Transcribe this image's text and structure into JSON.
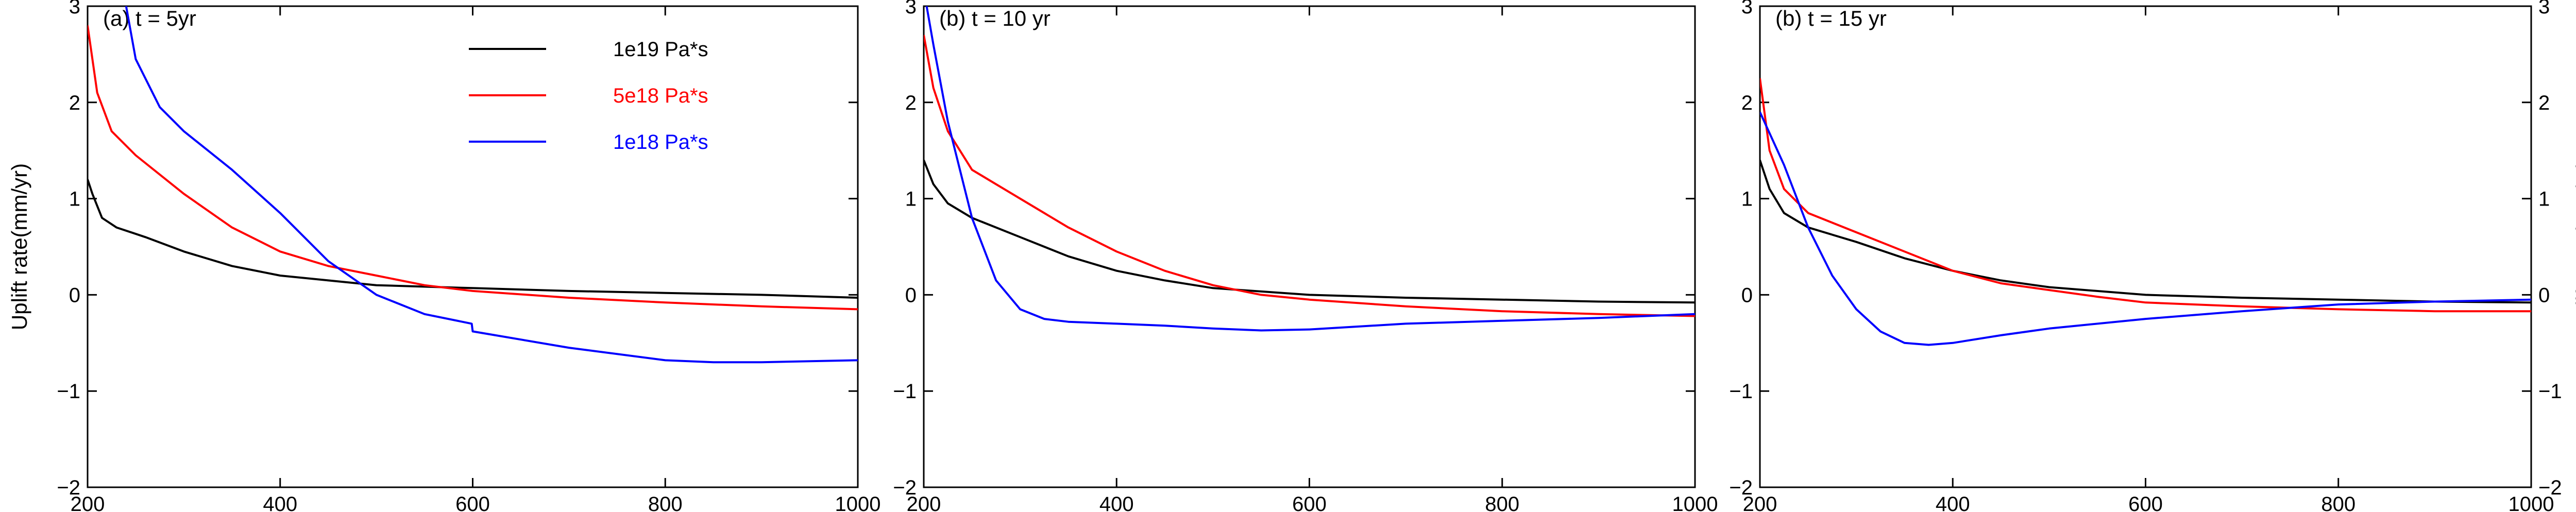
{
  "chart_data": [
    {
      "type": "line",
      "panel_label": "(a) t = 5yr",
      "ylabel": "Uplift rate(mm/yr)",
      "xlim": [
        200,
        1000
      ],
      "ylim": [
        -2,
        3
      ],
      "xticks": [
        200,
        400,
        600,
        800,
        1000
      ],
      "yticks": [
        -2,
        -1,
        0,
        1,
        2,
        3
      ],
      "grid": false,
      "legend": "top-center",
      "series": [
        {
          "name": "1e19 Pa*s",
          "color": "#000000",
          "x": [
            200,
            205,
            215,
            230,
            260,
            300,
            350,
            400,
            450,
            500,
            600,
            700,
            800,
            900,
            1000
          ],
          "y": [
            1.2,
            1.05,
            0.8,
            0.7,
            0.6,
            0.45,
            0.3,
            0.2,
            0.15,
            0.1,
            0.07,
            0.04,
            0.02,
            0.0,
            -0.03
          ]
        },
        {
          "name": "5e18 Pa*s",
          "color": "#ff0000",
          "x": [
            200,
            210,
            225,
            250,
            300,
            350,
            400,
            450,
            500,
            550,
            600,
            700,
            800,
            900,
            1000
          ],
          "y": [
            2.8,
            2.1,
            1.7,
            1.45,
            1.05,
            0.7,
            0.45,
            0.3,
            0.2,
            0.1,
            0.04,
            -0.03,
            -0.08,
            -0.12,
            -0.15
          ]
        },
        {
          "name": "1e18 Pa*s",
          "color": "#0000ff",
          "x": [
            240,
            250,
            275,
            300,
            350,
            400,
            450,
            500,
            550,
            599,
            600,
            700,
            800,
            850,
            900,
            1000
          ],
          "y": [
            3.0,
            2.45,
            1.95,
            1.7,
            1.3,
            0.85,
            0.35,
            0.0,
            -0.2,
            -0.3,
            -0.38,
            -0.55,
            -0.68,
            -0.7,
            -0.7,
            -0.68
          ]
        }
      ]
    },
    {
      "type": "line",
      "panel_label": "(b) t = 10 yr",
      "ylabel": "",
      "xlim": [
        200,
        1000
      ],
      "ylim": [
        -2,
        3
      ],
      "xticks": [
        200,
        400,
        600,
        800,
        1000
      ],
      "yticks": [
        -2,
        -1,
        0,
        1,
        2,
        3
      ],
      "grid": false,
      "legend": "none",
      "series": [
        {
          "name": "1e19 Pa*s",
          "color": "#000000",
          "x": [
            200,
            210,
            225,
            250,
            300,
            350,
            400,
            450,
            500,
            600,
            700,
            800,
            900,
            1000
          ],
          "y": [
            1.4,
            1.15,
            0.95,
            0.8,
            0.6,
            0.4,
            0.25,
            0.15,
            0.07,
            0.0,
            -0.03,
            -0.05,
            -0.07,
            -0.08
          ]
        },
        {
          "name": "5e18 Pa*s",
          "color": "#ff0000",
          "x": [
            200,
            210,
            225,
            250,
            275,
            300,
            350,
            400,
            450,
            500,
            550,
            600,
            700,
            800,
            900,
            1000
          ],
          "y": [
            2.7,
            2.15,
            1.7,
            1.3,
            1.15,
            1.0,
            0.7,
            0.45,
            0.25,
            0.1,
            0.0,
            -0.05,
            -0.12,
            -0.17,
            -0.2,
            -0.22
          ]
        },
        {
          "name": "1e18 Pa*s",
          "color": "#0000ff",
          "x": [
            203,
            210,
            225,
            250,
            275,
            300,
            325,
            350,
            400,
            450,
            500,
            550,
            600,
            700,
            800,
            900,
            1000
          ],
          "y": [
            3.0,
            2.6,
            1.8,
            0.8,
            0.15,
            -0.15,
            -0.25,
            -0.28,
            -0.3,
            -0.32,
            -0.35,
            -0.37,
            -0.36,
            -0.3,
            -0.27,
            -0.24,
            -0.2
          ]
        }
      ]
    },
    {
      "type": "line",
      "panel_label": "(b) t = 15 yr",
      "ylabel": "Uplift rate (mm/yr)",
      "xlim": [
        200,
        1000
      ],
      "ylim": [
        -2,
        3
      ],
      "xticks": [
        200,
        400,
        600,
        800,
        1000
      ],
      "yticks": [
        -2,
        -1,
        0,
        1,
        2,
        3
      ],
      "grid": false,
      "legend": "none",
      "series": [
        {
          "name": "1e19 Pa*s",
          "color": "#000000",
          "x": [
            200,
            210,
            225,
            250,
            300,
            350,
            400,
            450,
            500,
            600,
            700,
            800,
            900,
            1000
          ],
          "y": [
            1.4,
            1.1,
            0.85,
            0.7,
            0.55,
            0.38,
            0.25,
            0.15,
            0.08,
            0.0,
            -0.03,
            -0.05,
            -0.07,
            -0.08
          ]
        },
        {
          "name": "5e18 Pa*s",
          "color": "#ff0000",
          "x": [
            200,
            210,
            225,
            250,
            300,
            350,
            400,
            450,
            500,
            550,
            600,
            700,
            800,
            900,
            1000
          ],
          "y": [
            2.25,
            1.5,
            1.1,
            0.85,
            0.65,
            0.45,
            0.25,
            0.12,
            0.05,
            -0.02,
            -0.08,
            -0.12,
            -0.15,
            -0.17,
            -0.17
          ]
        },
        {
          "name": "1e18 Pa*s",
          "color": "#0000ff",
          "x": [
            200,
            225,
            250,
            275,
            300,
            325,
            350,
            375,
            400,
            450,
            500,
            600,
            700,
            800,
            900,
            1000
          ],
          "y": [
            1.9,
            1.35,
            0.7,
            0.2,
            -0.15,
            -0.38,
            -0.5,
            -0.52,
            -0.5,
            -0.42,
            -0.35,
            -0.25,
            -0.17,
            -0.1,
            -0.07,
            -0.05
          ]
        }
      ]
    }
  ]
}
